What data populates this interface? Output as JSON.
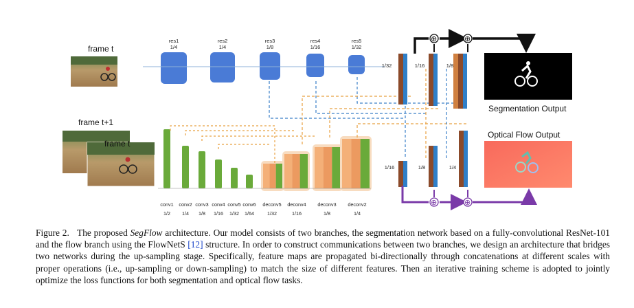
{
  "figure": {
    "frame_labels": {
      "frame_t": "frame t",
      "frame_t1": "frame t+1",
      "frame_t_inner": "frame t"
    },
    "res_blocks": [
      {
        "name": "res1",
        "scale": "1/4"
      },
      {
        "name": "res2",
        "scale": "1/4"
      },
      {
        "name": "res3",
        "scale": "1/8"
      },
      {
        "name": "res4",
        "scale": "1/16"
      },
      {
        "name": "res5",
        "scale": "1/32"
      }
    ],
    "flow_layers": [
      "conv1",
      "conv2",
      "conv3",
      "conv4",
      "conv5",
      "conv6",
      "deconv5",
      "deconv4",
      "deconv3",
      "deconv2"
    ],
    "flow_scales": [
      "1/2",
      "1/4",
      "1/8",
      "1/16",
      "1/32",
      "1/64",
      "1/32",
      "1/16",
      "1/8",
      "1/4"
    ],
    "fusion_top_scales": [
      "1/32",
      "1/16",
      "1/8"
    ],
    "fusion_bottom_scales": [
      "1/16",
      "1/8",
      "1/4"
    ],
    "outputs": {
      "segmentation": "Segmentation Output",
      "optical_flow": "Optical Flow Output"
    },
    "plus_symbol": "⊕",
    "colors": {
      "res_block": "#4a7bd6",
      "conv": "#6aaa3a",
      "brown": "#8b4a2a",
      "blue": "#2f7fc8",
      "purple": "#7a3aa8",
      "orange": "#f0b060"
    }
  },
  "caption": {
    "figure_label": "Figure 2.",
    "text_1": "The proposed ",
    "name": "SegFlow",
    "text_2": " architecture.  Our model consists of two branches, the segmentation network based on a fully-convolutional ResNet-101 and the flow branch using the FlowNetS ",
    "ref": "[12]",
    "text_3": " structure.  In order to construct communications between two branches, we design an architecture that bridges two networks during the up-sampling stage.  Specifically, feature maps are propagated bi-directionally through concatenations at different scales with proper operations (i.e., up-sampling or down-sampling) to match the size of different features.  Then an iterative training scheme is adopted to jointly optimize the loss functions for both segmentation and optical flow tasks."
  }
}
